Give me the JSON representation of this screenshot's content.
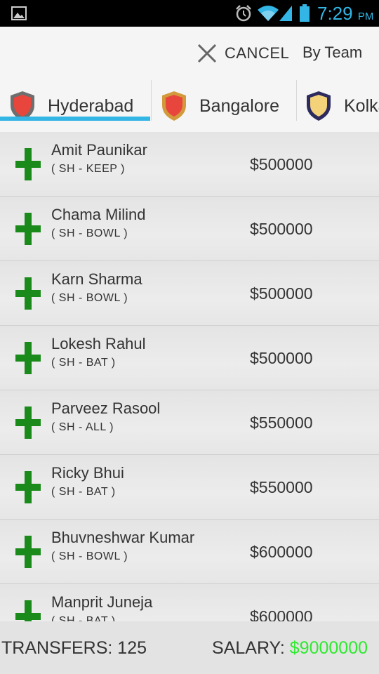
{
  "status_bar": {
    "time": "7:29",
    "ampm": "PM",
    "icons": [
      "gallery-icon",
      "alarm-icon",
      "wifi-icon",
      "signal-icon",
      "battery-icon"
    ],
    "time_color": "#33b5e5"
  },
  "action_bar": {
    "cancel_label": "CANCEL",
    "by_team_label": "By Team"
  },
  "tabs": [
    {
      "label": "Hyderabad",
      "selected": true,
      "shield_color": "#e8463c",
      "shield_border": "#6e6e6e"
    },
    {
      "label": "Bangalore",
      "selected": false,
      "shield_color": "#e8463c",
      "shield_border": "#d39a3b"
    },
    {
      "label": "Kolkata",
      "selected": false,
      "shield_color": "#f3d27a",
      "shield_border": "#2d2a5e"
    }
  ],
  "players": [
    {
      "name": "Amit Paunikar",
      "role": "( SH - KEEP )",
      "price": "$500000"
    },
    {
      "name": "Chama Milind",
      "role": "( SH - BOWL )",
      "price": "$500000"
    },
    {
      "name": "Karn Sharma",
      "role": "( SH - BOWL )",
      "price": "$500000"
    },
    {
      "name": "Lokesh Rahul",
      "role": "( SH - BAT )",
      "price": "$500000"
    },
    {
      "name": "Parveez Rasool",
      "role": "( SH - ALL )",
      "price": "$550000"
    },
    {
      "name": "Ricky Bhui",
      "role": "( SH - BAT )",
      "price": "$550000"
    },
    {
      "name": "Bhuvneshwar Kumar",
      "role": "( SH - BOWL )",
      "price": "$600000"
    },
    {
      "name": "Manprit Juneja",
      "role": "( SH - BAT )",
      "price": "$600000"
    }
  ],
  "footer": {
    "transfers_label": "TRANSFERS: 125",
    "salary_label": "SALARY:",
    "salary_value": "$9000000",
    "salary_color": "#2eea2e"
  },
  "colors": {
    "accent": "#33b5e5",
    "add_icon": "#1a8a1a"
  }
}
